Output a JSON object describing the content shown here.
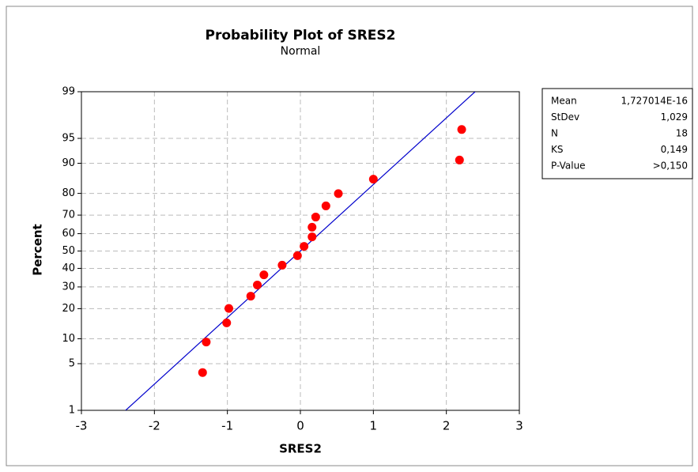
{
  "chart_data": {
    "type": "probability",
    "title": "Probability Plot of SRES2",
    "subtitle": "Normal",
    "xlabel": "SRES2",
    "ylabel": "Percent",
    "x": [
      -1.34,
      -1.29,
      -1.01,
      -0.98,
      -0.68,
      -0.59,
      -0.5,
      -0.25,
      -0.04,
      0.05,
      0.16,
      0.16,
      0.21,
      0.35,
      0.52,
      1.0,
      2.18,
      2.21
    ],
    "values": [
      3.8,
      9.2,
      14.7,
      20.1,
      25.5,
      31.0,
      36.4,
      41.8,
      47.3,
      52.7,
      58.2,
      63.6,
      69.0,
      74.5,
      79.9,
      85.3,
      90.8,
      96.2
    ],
    "color": "#ff0000",
    "line_color": "#0000cc",
    "xlim": [
      -3,
      3
    ],
    "xticks": [
      -3,
      -2,
      -1,
      0,
      1,
      2,
      3
    ],
    "ylim": [
      1,
      99
    ],
    "yticks": [
      1,
      5,
      10,
      20,
      30,
      40,
      50,
      60,
      70,
      80,
      90,
      95,
      99
    ],
    "yscale": "probability",
    "grid": true,
    "stats": {
      "names": [
        "Mean",
        "StDev",
        "N",
        "KS",
        "P-Value"
      ],
      "values": [
        1.727014e-16,
        1.029,
        18,
        0.149,
        0.15
      ],
      "value_labels": [
        "1,727014E-16",
        "1,029",
        "18",
        "0,149",
        ">0,150"
      ]
    }
  }
}
